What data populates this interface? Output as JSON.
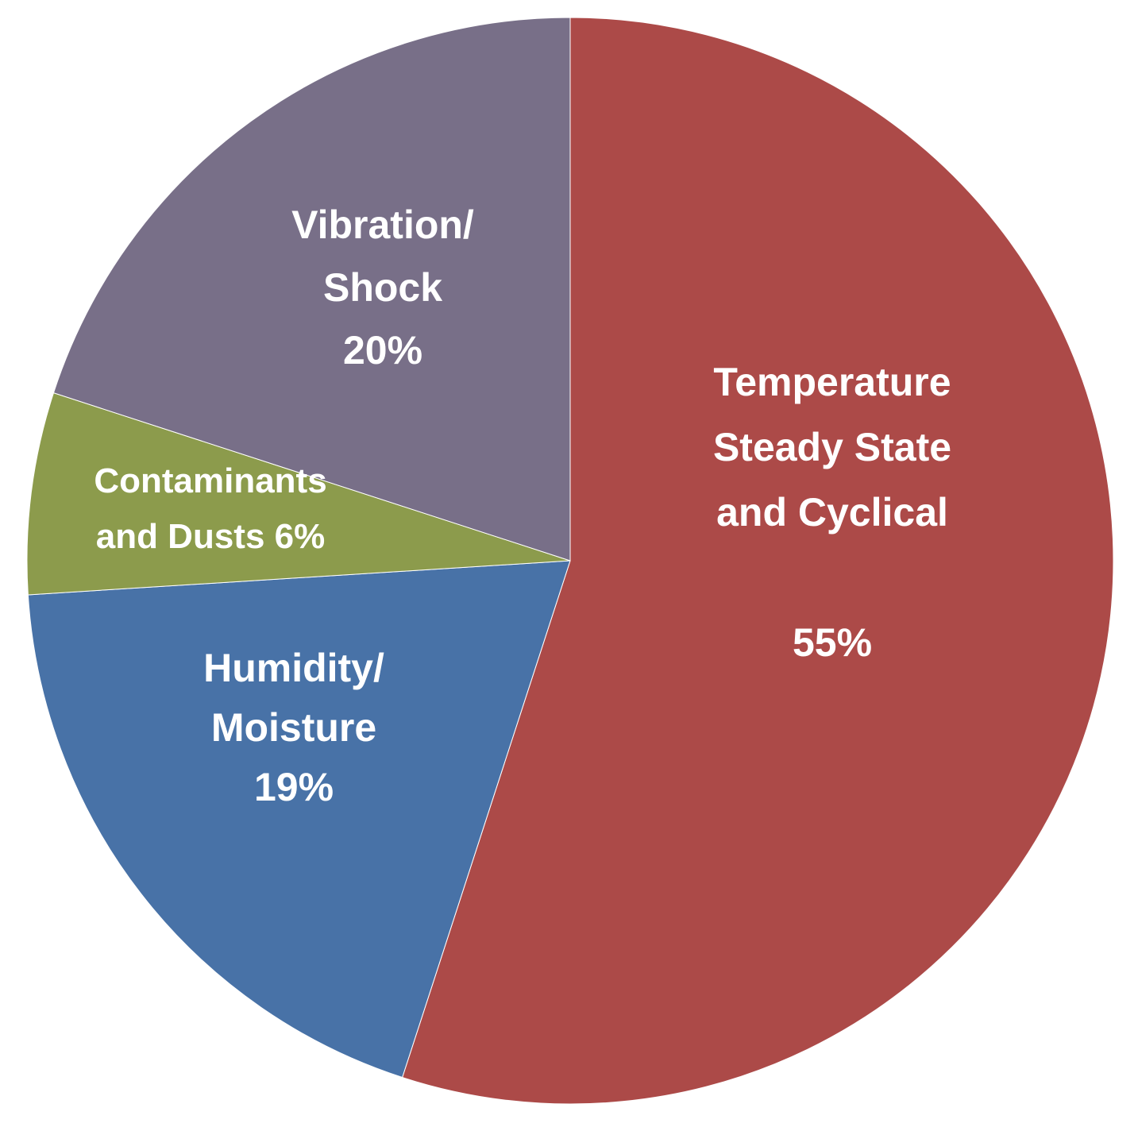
{
  "chart_data": {
    "type": "pie",
    "start": "12 o'clock",
    "direction": "clockwise",
    "slices": [
      {
        "category": "Temperature Steady State and Cyclical",
        "value": 55,
        "label_lines": [
          "Temperature",
          "Steady State",
          "and Cyclical",
          "",
          "55%"
        ],
        "color": "#AC4A48"
      },
      {
        "category": "Humidity/ Moisture",
        "value": 19,
        "label_lines": [
          "Humidity/",
          "Moisture",
          "19%"
        ],
        "color": "#4872A7"
      },
      {
        "category": "Contaminants and Dusts",
        "value": 6,
        "label_lines": [
          "Contaminants",
          "and Dusts  6%"
        ],
        "color": "#8C9B4C"
      },
      {
        "category": "Vibration/ Shock",
        "value": 20,
        "label_lines": [
          "Vibration/",
          "Shock",
          "20%"
        ],
        "color": "#786F88"
      }
    ],
    "legend": "none"
  }
}
